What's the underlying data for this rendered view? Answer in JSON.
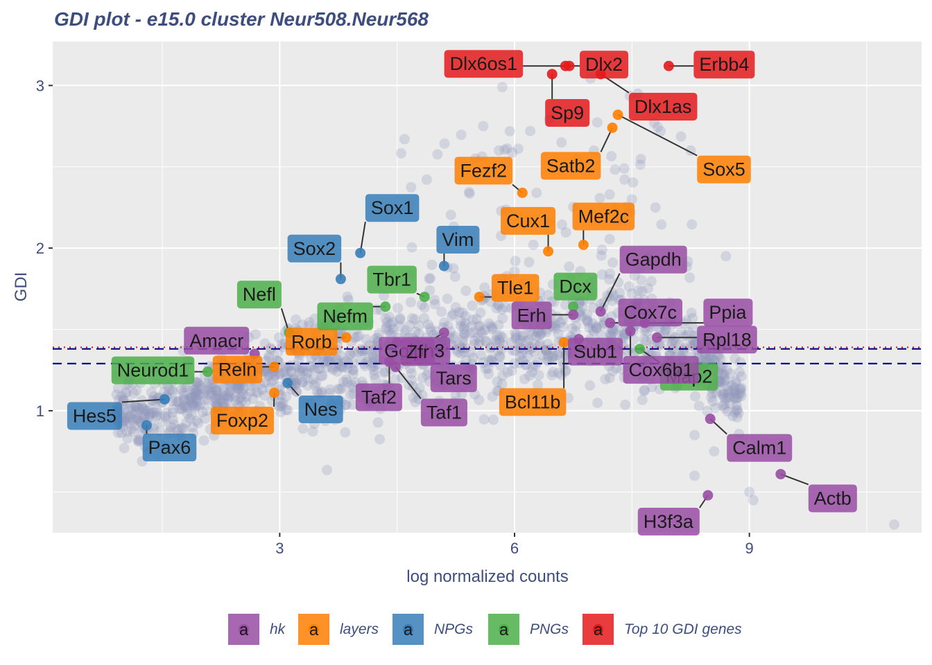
{
  "chart_data": {
    "type": "scatter",
    "title": "GDI plot - e15.0 cluster Neur508.Neur568",
    "xlabel": "log normalized counts",
    "ylabel": "GDI",
    "xlim": [
      0.1,
      11.2
    ],
    "ylim": [
      0.25,
      3.27
    ],
    "x_ticks": [
      3,
      6,
      9
    ],
    "y_ticks": [
      1,
      2,
      3
    ],
    "x_tick_labels": [
      "3",
      "6",
      "9"
    ],
    "y_tick_labels": [
      "1",
      "2",
      "3"
    ],
    "grid": true,
    "legend_position": "bottom",
    "thresholds": [
      {
        "y": 1.39,
        "style": "dotted",
        "color": "#e41a1c"
      },
      {
        "y": 1.38,
        "style": "dashed",
        "color": "#00008b"
      },
      {
        "y": 1.29,
        "style": "dashed",
        "color": "#00008b"
      }
    ],
    "categories": [
      {
        "name": "hk",
        "color": "#984ea3"
      },
      {
        "name": "layers",
        "color": "#ff7f00"
      },
      {
        "name": "NPGs",
        "color": "#377eb8"
      },
      {
        "name": "PNGs",
        "color": "#4daf4a"
      },
      {
        "name": "Top 10 GDI genes",
        "color": "#e41a1c"
      }
    ],
    "background_color": "#8f96bb",
    "labeled_genes": [
      {
        "gene": "Dlx6os1",
        "x": 6.65,
        "y": 3.12,
        "category": "Top 10 GDI genes"
      },
      {
        "gene": "Dlx2",
        "x": 6.7,
        "y": 3.12,
        "category": "Top 10 GDI genes"
      },
      {
        "gene": "Erbb4",
        "x": 7.97,
        "y": 3.12,
        "category": "Top 10 GDI genes"
      },
      {
        "gene": "Sp9",
        "x": 6.48,
        "y": 3.07,
        "category": "Top 10 GDI genes"
      },
      {
        "gene": "Dlx1as",
        "x": 7.1,
        "y": 3.07,
        "category": "Top 10 GDI genes"
      },
      {
        "gene": "Satb2",
        "x": 7.25,
        "y": 2.74,
        "category": "layers"
      },
      {
        "gene": "Sox5",
        "x": 7.32,
        "y": 2.82,
        "category": "layers"
      },
      {
        "gene": "Fezf2",
        "x": 6.1,
        "y": 2.34,
        "category": "layers"
      },
      {
        "gene": "Mef2c",
        "x": 6.88,
        "y": 2.02,
        "category": "layers"
      },
      {
        "gene": "Cux1",
        "x": 6.43,
        "y": 1.98,
        "category": "layers"
      },
      {
        "gene": "Tle1",
        "x": 5.55,
        "y": 1.7,
        "category": "layers"
      },
      {
        "gene": "Bcl11b",
        "x": 6.63,
        "y": 1.42,
        "category": "layers"
      },
      {
        "gene": "Rorb",
        "x": 3.85,
        "y": 1.45,
        "category": "layers"
      },
      {
        "gene": "Reln",
        "x": 2.93,
        "y": 1.27,
        "category": "layers"
      },
      {
        "gene": "Foxp2",
        "x": 2.93,
        "y": 1.11,
        "category": "layers"
      },
      {
        "gene": "Sox1",
        "x": 4.03,
        "y": 1.97,
        "category": "NPGs"
      },
      {
        "gene": "Sox2",
        "x": 3.78,
        "y": 1.81,
        "category": "NPGs"
      },
      {
        "gene": "Vim",
        "x": 5.1,
        "y": 1.89,
        "category": "NPGs"
      },
      {
        "gene": "Nes",
        "x": 3.1,
        "y": 1.17,
        "category": "NPGs"
      },
      {
        "gene": "Hes5",
        "x": 1.53,
        "y": 1.07,
        "category": "NPGs"
      },
      {
        "gene": "Pax6",
        "x": 1.3,
        "y": 0.91,
        "category": "NPGs"
      },
      {
        "gene": "Tbr1",
        "x": 4.85,
        "y": 1.7,
        "category": "PNGs"
      },
      {
        "gene": "Dcx",
        "x": 6.75,
        "y": 1.64,
        "category": "PNGs"
      },
      {
        "gene": "Nefl",
        "x": 3.12,
        "y": 1.48,
        "category": "PNGs"
      },
      {
        "gene": "Nefm",
        "x": 4.35,
        "y": 1.64,
        "category": "PNGs"
      },
      {
        "gene": "Neurod1",
        "x": 2.08,
        "y": 1.24,
        "category": "PNGs"
      },
      {
        "gene": "Map2",
        "x": 7.6,
        "y": 1.38,
        "category": "PNGs"
      },
      {
        "gene": "Amacr",
        "x": 2.68,
        "y": 1.35,
        "category": "hk"
      },
      {
        "gene": "Golph3",
        "x": 4.5,
        "y": 1.42,
        "category": "hk"
      },
      {
        "gene": "Zfr",
        "x": 5.1,
        "y": 1.48,
        "category": "hk"
      },
      {
        "gene": "Erh",
        "x": 6.75,
        "y": 1.59,
        "category": "hk"
      },
      {
        "gene": "Gapdh",
        "x": 7.1,
        "y": 1.61,
        "category": "hk"
      },
      {
        "gene": "Cox7c",
        "x": 7.22,
        "y": 1.54,
        "category": "hk"
      },
      {
        "gene": "Ppia",
        "x": 7.66,
        "y": 1.54,
        "category": "hk"
      },
      {
        "gene": "Rpl18",
        "x": 7.82,
        "y": 1.45,
        "category": "hk"
      },
      {
        "gene": "Sub1",
        "x": 6.82,
        "y": 1.44,
        "category": "hk"
      },
      {
        "gene": "Cox6b1",
        "x": 7.48,
        "y": 1.49,
        "category": "hk"
      },
      {
        "gene": "Tars",
        "x": 4.78,
        "y": 1.34,
        "category": "hk"
      },
      {
        "gene": "Taf2",
        "x": 4.4,
        "y": 1.3,
        "category": "hk"
      },
      {
        "gene": "Taf1",
        "x": 4.48,
        "y": 1.27,
        "category": "hk"
      },
      {
        "gene": "Calm1",
        "x": 8.5,
        "y": 0.95,
        "category": "hk"
      },
      {
        "gene": "Actb",
        "x": 9.4,
        "y": 0.61,
        "category": "hk"
      },
      {
        "gene": "H3f3a",
        "x": 8.47,
        "y": 0.48,
        "category": "hk"
      }
    ]
  }
}
